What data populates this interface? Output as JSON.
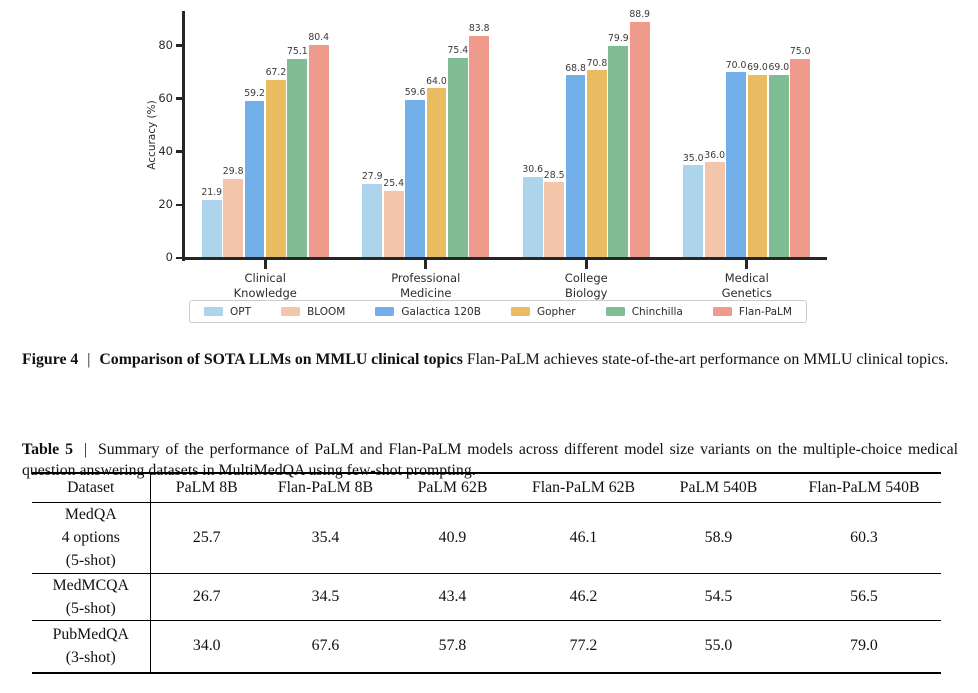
{
  "figure_caption": {
    "label": "Figure 4",
    "separator": "|",
    "title": "Comparison of SOTA LLMs on MMLU clinical topics",
    "text": "Flan-PaLM achieves state-of-the-art performance on MMLU clinical topics."
  },
  "table_caption": {
    "label": "Table 5",
    "separator": "|",
    "text": "Summary of the performance of PaLM and Flan-PaLM models across different model size variants on the multiple-choice medical question answering datasets in MultiMedQA using few-shot prompting."
  },
  "chart_data": {
    "type": "bar",
    "title": "",
    "xlabel": "",
    "ylabel": "Accuracy (%)",
    "ylim": [
      0,
      93
    ],
    "yticks": [
      0,
      20,
      40,
      60,
      80
    ],
    "grid": false,
    "legend_position": "bottom",
    "categories": [
      "Clinical\nKnowledge",
      "Professional\nMedicine",
      "College\nBiology",
      "Medical\nGenetics"
    ],
    "series": [
      {
        "name": "OPT",
        "color": "#aed4ec",
        "values": [
          21.9,
          27.9,
          30.6,
          35.0
        ]
      },
      {
        "name": "BLOOM",
        "color": "#f3c6ac",
        "values": [
          29.8,
          25.4,
          28.5,
          36.0
        ]
      },
      {
        "name": "Galactica 120B",
        "color": "#73b0ea",
        "values": [
          59.2,
          59.6,
          68.8,
          70.0
        ]
      },
      {
        "name": "Gopher",
        "color": "#e9bc62",
        "values": [
          67.2,
          64.0,
          70.8,
          69.0
        ]
      },
      {
        "name": "Chinchilla",
        "color": "#80bd95",
        "values": [
          75.1,
          75.4,
          79.9,
          69.0
        ]
      },
      {
        "name": "Flan-PaLM",
        "color": "#ee9b8e",
        "values": [
          80.4,
          83.8,
          88.9,
          75.0
        ]
      }
    ]
  },
  "table": {
    "columns": [
      "Dataset",
      "PaLM 8B",
      "Flan-PaLM 8B",
      "PaLM 62B",
      "Flan-PaLM 62B",
      "PaLM 540B",
      "Flan-PaLM 540B"
    ],
    "rows": [
      {
        "dataset": "MedQA\n4 options\n(5-shot)",
        "values": [
          "25.7",
          "35.4",
          "40.9",
          "46.1",
          "58.9",
          "60.3"
        ]
      },
      {
        "dataset": "MedMCQA\n(5-shot)",
        "values": [
          "26.7",
          "34.5",
          "43.4",
          "46.2",
          "54.5",
          "56.5"
        ]
      },
      {
        "dataset": "PubMedQA\n(3-shot)",
        "values": [
          "34.0",
          "67.6",
          "57.8",
          "77.2",
          "55.0",
          "79.0"
        ]
      }
    ]
  }
}
